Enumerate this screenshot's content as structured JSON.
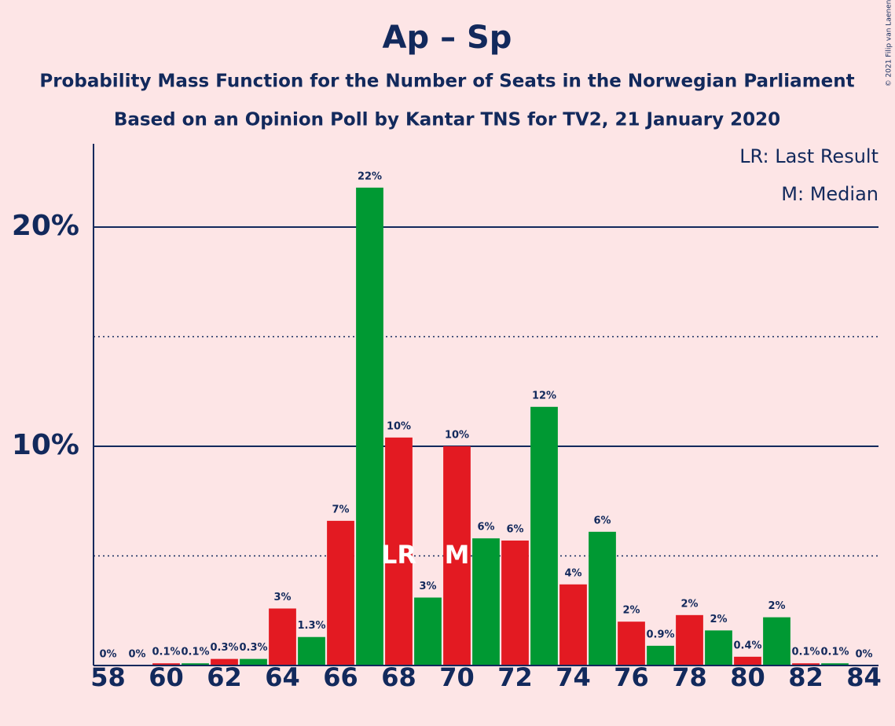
{
  "chart_data": {
    "type": "bar",
    "title": "Ap – Sp",
    "subtitle": "Probability Mass Function for the Number of Seats in the Norwegian Parliament",
    "subtitle2": "Based on an Opinion Poll by Kantar TNS for TV2, 21 January 2020",
    "copyright": "© 2021 Filip van Laenen",
    "x": [
      58,
      59,
      60,
      61,
      62,
      63,
      64,
      65,
      66,
      67,
      68,
      69,
      70,
      71,
      72,
      73,
      74,
      75,
      76,
      77,
      78,
      79,
      80,
      81,
      82,
      83,
      84
    ],
    "values": [
      0,
      0,
      0.1,
      0.1,
      0.3,
      0.3,
      2.6,
      1.3,
      6.6,
      21.8,
      10.4,
      3.1,
      10.0,
      5.8,
      5.7,
      11.8,
      3.7,
      6.1,
      2.0,
      0.9,
      2.3,
      1.6,
      0.4,
      2.2,
      0.1,
      0.1,
      0
    ],
    "value_labels": [
      "0%",
      "0%",
      "0.1%",
      "0.1%",
      "0.3%",
      "0.3%",
      "3%",
      "1.3%",
      "7%",
      "22%",
      "10%",
      "3%",
      "10%",
      "6%",
      "6%",
      "12%",
      "4%",
      "6%",
      "2%",
      "0.9%",
      "2%",
      "2%",
      "0.4%",
      "2%",
      "0.1%",
      "0.1%",
      "0%"
    ],
    "colors": [
      "#e31a22",
      "#009933",
      "#e31a22",
      "#009933",
      "#e31a22",
      "#009933",
      "#e31a22",
      "#009933",
      "#e31a22",
      "#009933",
      "#e31a22",
      "#009933",
      "#e31a22",
      "#009933",
      "#e31a22",
      "#009933",
      "#e31a22",
      "#009933",
      "#e31a22",
      "#009933",
      "#e31a22",
      "#009933",
      "#e31a22",
      "#009933",
      "#e31a22",
      "#009933",
      "#e31a22"
    ],
    "xlim": [
      57.5,
      84.5
    ],
    "xticks": [
      58,
      60,
      62,
      64,
      66,
      68,
      70,
      72,
      74,
      76,
      78,
      80,
      82,
      84
    ],
    "ylim": [
      0,
      23.8
    ],
    "yticks": [
      {
        "value": 10,
        "label": "10%"
      },
      {
        "value": 20,
        "label": "20%"
      }
    ],
    "minor_yticks": [
      5,
      15
    ],
    "grid": true,
    "annotations": [
      {
        "x": 68,
        "text": "LR"
      },
      {
        "x": 70,
        "text": "M"
      }
    ],
    "legend_notes": [
      "LR: Last Result",
      "M: Median"
    ]
  }
}
